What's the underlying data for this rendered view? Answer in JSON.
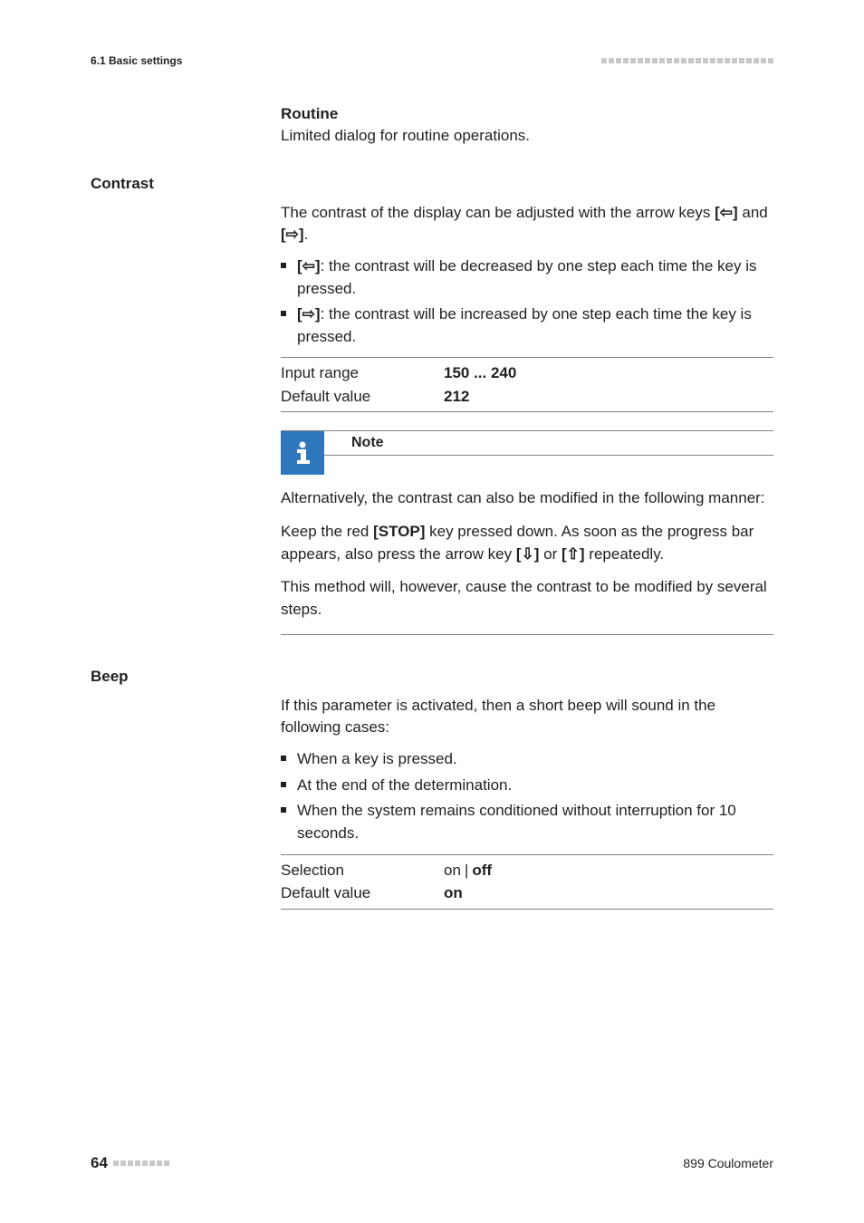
{
  "header": {
    "section_path": "6.1 Basic settings",
    "square_count": 24,
    "square_color": "#c7c8ca"
  },
  "routine": {
    "term": "Routine",
    "para": "Limited dialog for routine operations."
  },
  "contrast": {
    "side_label": "Contrast",
    "para_before": "The contrast of the display can be adjusted with the arrow keys ",
    "key_left": "[⇦]",
    "and": " and ",
    "key_right": "[⇨]",
    "period": ".",
    "bullet1_key": "[⇦]",
    "bullet1_rest": ": the contrast will be decreased by one step each time the key is pressed.",
    "bullet2_key": "[⇨]",
    "bullet2_rest": ": the contrast will be increased by one step each time the key is pressed.",
    "kv": {
      "row1_key": "Input range",
      "row1_val": "150 ... 240",
      "row2_key": "Default value",
      "row2_val": "212"
    }
  },
  "note": {
    "title": "Note",
    "p1": "Alternatively, the contrast can also be modified in the following manner:",
    "p2a": "Keep the red ",
    "p2_stop": "[STOP]",
    "p2b": " key pressed down. As soon as the progress bar appears, also press the arrow key ",
    "p2_down": "[⇩]",
    "p2_or": " or ",
    "p2_up": "[⇧]",
    "p2c": " repeatedly.",
    "p3": "This method will, however, cause the contrast to be modified by several steps.",
    "icon_bg": "#2f77bc",
    "icon_fg": "#ffffff"
  },
  "beep": {
    "side_label": "Beep",
    "para": "If this parameter is activated, then a short beep will sound in the following cases:",
    "b1": "When a key is pressed.",
    "b2": "At the end of the determination.",
    "b3": "When the system remains conditioned without interruption for 10 seconds.",
    "kv": {
      "row1_key": "Selection",
      "row1_on": "on",
      "row1_off": "off",
      "row2_key": "Default value",
      "row2_val": "on"
    }
  },
  "footer": {
    "page_number": "64",
    "square_count": 8,
    "square_color": "#c7c8ca",
    "device": "899 Coulometer"
  }
}
